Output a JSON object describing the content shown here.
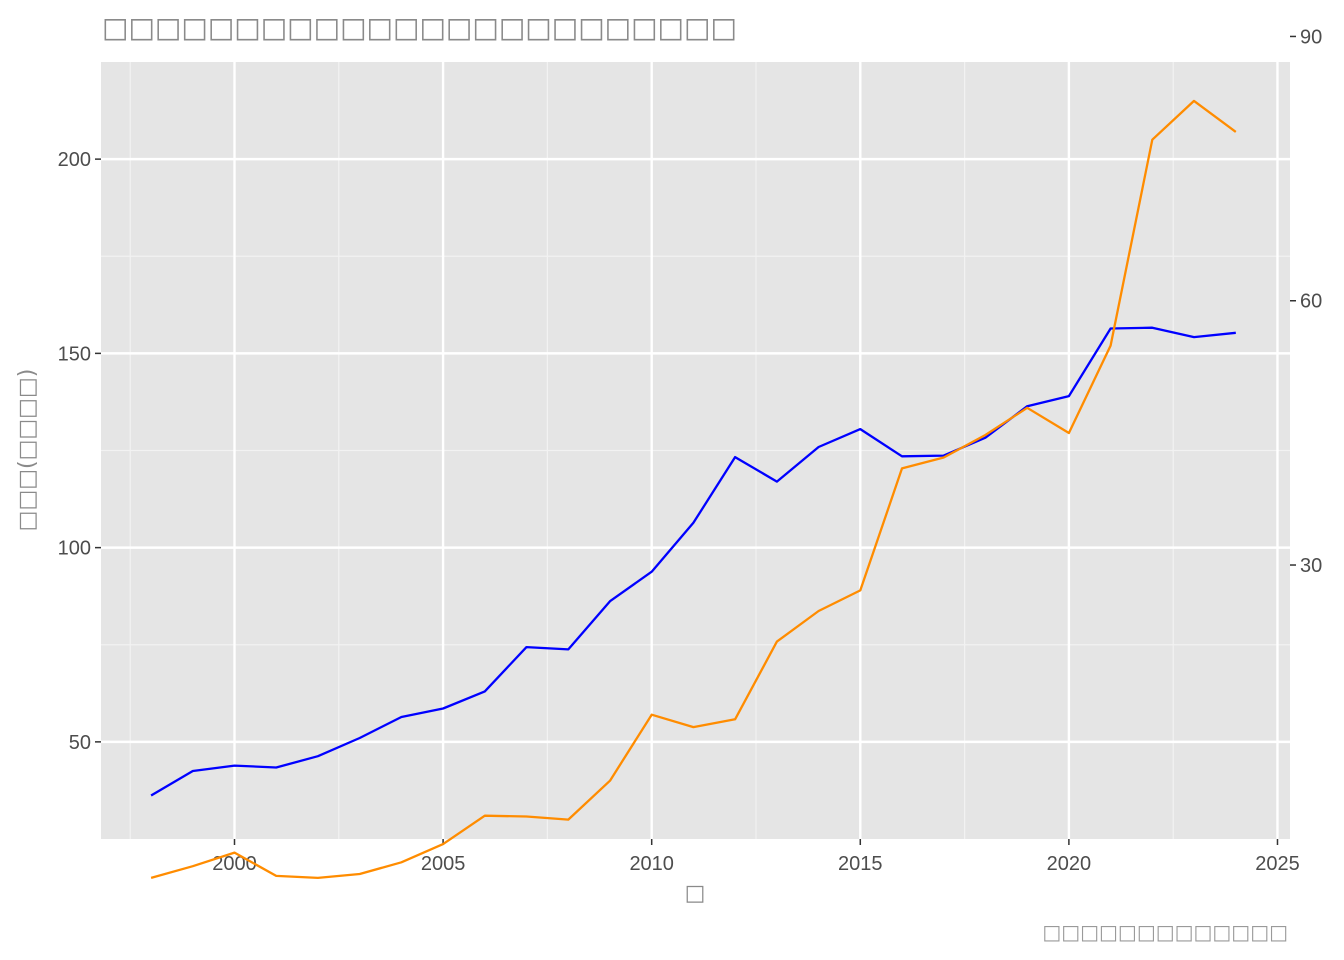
{
  "chart_data": {
    "type": "line",
    "title": "□□□□□□□□□□□□□□□□□□□□□□□□",
    "xlabel": "□",
    "ylabel": "□□□(□□□□)",
    "caption": "□□□□□□□□□□□□□",
    "x": [
      1998,
      1999,
      2000,
      2001,
      2002,
      2003,
      2004,
      2005,
      2006,
      2007,
      2008,
      2009,
      2010,
      2011,
      2012,
      2013,
      2014,
      2015,
      2016,
      2017,
      2018,
      2019,
      2020,
      2021,
      2022,
      2023,
      2024
    ],
    "xlim": [
      1996.8,
      2025.3
    ],
    "x_ticks": [
      "2000",
      "2005",
      "2010",
      "2015",
      "2020",
      "2025"
    ],
    "ylim": [
      25,
      225
    ],
    "y_ticks": [
      "50",
      "100",
      "150",
      "200"
    ],
    "y2lim": [
      -1.1,
      87.1
    ],
    "y2_ticks": [
      "30",
      "60",
      "90"
    ],
    "y2_scale_note": "secondary axis values read as shown",
    "grid": true,
    "legend": "none",
    "series": [
      {
        "color": "#0000ff",
        "axis": "left",
        "values": [
          36.2,
          42.5,
          43.9,
          43.4,
          46.3,
          51.0,
          56.4,
          58.6,
          63.0,
          74.4,
          73.8,
          86.2,
          93.8,
          106.4,
          123.3,
          117.0,
          125.9,
          130.5,
          123.5,
          123.7,
          128.3,
          136.4,
          139.0,
          156.4,
          156.6,
          154.2,
          155.3
        ]
      },
      {
        "color": "#ff8c00",
        "axis": "left",
        "values": [
          15.0,
          18.0,
          21.5,
          15.5,
          15.0,
          16.0,
          19.0,
          23.7,
          31.0,
          30.8,
          30.0,
          40.0,
          57.0,
          53.8,
          55.8,
          75.8,
          83.7,
          89.0,
          120.4,
          123.2,
          129.0,
          136.0,
          129.5,
          152.0,
          205.0,
          215.0,
          207.0
        ]
      }
    ]
  }
}
